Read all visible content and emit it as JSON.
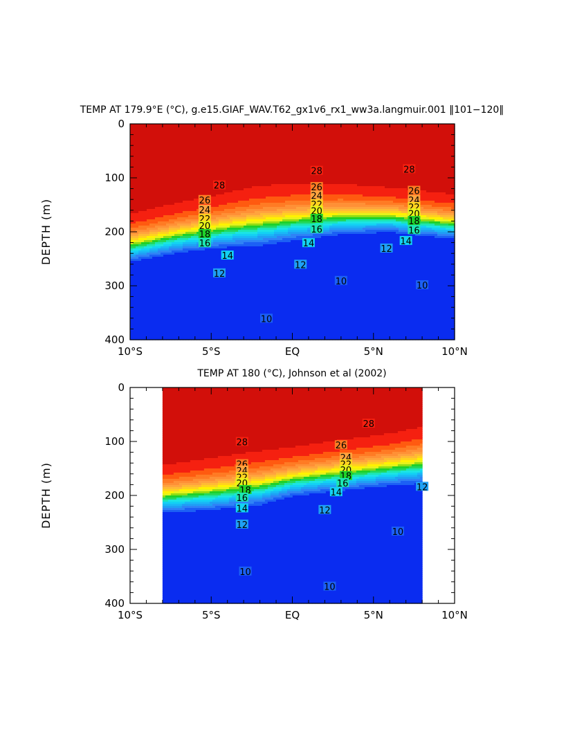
{
  "chart_data": [
    {
      "type": "heatmap",
      "subtype": "filled-contour depth section",
      "title": "TEMP AT 179.9°E (°C), g.e15.GIAF_WAV.T62_gx1v6_rx1_ww3a.langmuir.001 ‖101−120‖",
      "xlabel": "",
      "ylabel": "DEPTH (m)",
      "xlim": [
        -10,
        10
      ],
      "ylim": [
        400,
        0
      ],
      "x_ticks": [
        -10,
        -5,
        0,
        5,
        10
      ],
      "x_tick_labels": [
        "10°S",
        "5°S",
        "EQ",
        "5°N",
        "10°N"
      ],
      "y_ticks": [
        0,
        100,
        200,
        300,
        400
      ],
      "y_tick_labels": [
        "0",
        "100",
        "200",
        "300",
        "400"
      ],
      "data_x_range": [
        -10,
        10
      ],
      "contour_levels": [
        10,
        11,
        12,
        13,
        14,
        15,
        16,
        17,
        18,
        19,
        20,
        21,
        22,
        23,
        24,
        25,
        26,
        27,
        28,
        29
      ],
      "contour_labels": [
        {
          "text": "28",
          "x": -4.5,
          "y": 115
        },
        {
          "text": "28",
          "x": 1.5,
          "y": 88
        },
        {
          "text": "28",
          "x": 7.2,
          "y": 85
        },
        {
          "text": "26",
          "x": -5.4,
          "y": 142
        },
        {
          "text": "26",
          "x": 1.5,
          "y": 118
        },
        {
          "text": "26",
          "x": 7.5,
          "y": 125
        },
        {
          "text": "24",
          "x": -5.4,
          "y": 160
        },
        {
          "text": "24",
          "x": 1.5,
          "y": 134
        },
        {
          "text": "24",
          "x": 7.5,
          "y": 142
        },
        {
          "text": "22",
          "x": -5.4,
          "y": 177
        },
        {
          "text": "22",
          "x": 1.5,
          "y": 150
        },
        {
          "text": "22",
          "x": 7.5,
          "y": 155
        },
        {
          "text": "20",
          "x": -5.4,
          "y": 190
        },
        {
          "text": "20",
          "x": 1.5,
          "y": 162
        },
        {
          "text": "20",
          "x": 7.5,
          "y": 167
        },
        {
          "text": "18",
          "x": -5.4,
          "y": 205
        },
        {
          "text": "18",
          "x": 1.5,
          "y": 177
        },
        {
          "text": "18",
          "x": 7.5,
          "y": 181
        },
        {
          "text": "16",
          "x": -5.4,
          "y": 222
        },
        {
          "text": "16",
          "x": 1.5,
          "y": 196
        },
        {
          "text": "16",
          "x": 7.5,
          "y": 198
        },
        {
          "text": "14",
          "x": -4.0,
          "y": 245
        },
        {
          "text": "14",
          "x": 1.0,
          "y": 222
        },
        {
          "text": "14",
          "x": 7.0,
          "y": 218
        },
        {
          "text": "12",
          "x": -4.5,
          "y": 278
        },
        {
          "text": "12",
          "x": 0.5,
          "y": 262
        },
        {
          "text": "12",
          "x": 5.8,
          "y": 232
        },
        {
          "text": "10",
          "x": -1.6,
          "y": 362
        },
        {
          "text": "10",
          "x": 3.0,
          "y": 292
        },
        {
          "text": "10",
          "x": 8.0,
          "y": 300
        }
      ]
    },
    {
      "type": "heatmap",
      "subtype": "filled-contour depth section",
      "title": "TEMP AT 180 (°C), Johnson et al (2002)",
      "xlabel": "",
      "ylabel": "DEPTH (m)",
      "xlim": [
        -10,
        10
      ],
      "ylim": [
        400,
        0
      ],
      "x_ticks": [
        -10,
        -5,
        0,
        5,
        10
      ],
      "x_tick_labels": [
        "10°S",
        "5°S",
        "EQ",
        "5°N",
        "10°N"
      ],
      "y_ticks": [
        0,
        100,
        200,
        300,
        400
      ],
      "y_tick_labels": [
        "0",
        "100",
        "200",
        "300",
        "400"
      ],
      "data_x_range": [
        -8,
        8
      ],
      "contour_levels": [
        10,
        11,
        12,
        13,
        14,
        15,
        16,
        17,
        18,
        19,
        20,
        21,
        22,
        23,
        24,
        25,
        26,
        27,
        28,
        29
      ],
      "contour_labels": [
        {
          "text": "28",
          "x": -3.1,
          "y": 102
        },
        {
          "text": "28",
          "x": 4.7,
          "y": 68
        },
        {
          "text": "26",
          "x": -3.1,
          "y": 143
        },
        {
          "text": "26",
          "x": 3.0,
          "y": 108
        },
        {
          "text": "24",
          "x": -3.1,
          "y": 155
        },
        {
          "text": "24",
          "x": 3.3,
          "y": 131
        },
        {
          "text": "22",
          "x": -3.1,
          "y": 167
        },
        {
          "text": "22",
          "x": 3.3,
          "y": 143
        },
        {
          "text": "20",
          "x": -3.1,
          "y": 178
        },
        {
          "text": "20",
          "x": 3.3,
          "y": 154
        },
        {
          "text": "18",
          "x": -2.9,
          "y": 191
        },
        {
          "text": "18",
          "x": 3.3,
          "y": 165
        },
        {
          "text": "16",
          "x": -3.1,
          "y": 205
        },
        {
          "text": "16",
          "x": 3.1,
          "y": 178
        },
        {
          "text": "14",
          "x": -3.1,
          "y": 225
        },
        {
          "text": "14",
          "x": 2.7,
          "y": 195
        },
        {
          "text": "12",
          "x": -3.1,
          "y": 255
        },
        {
          "text": "12",
          "x": 2.0,
          "y": 228
        },
        {
          "text": "12",
          "x": 8.0,
          "y": 185
        },
        {
          "text": "10",
          "x": -2.9,
          "y": 342
        },
        {
          "text": "10",
          "x": 2.3,
          "y": 370
        },
        {
          "text": "10",
          "x": 6.5,
          "y": 268
        }
      ]
    }
  ]
}
